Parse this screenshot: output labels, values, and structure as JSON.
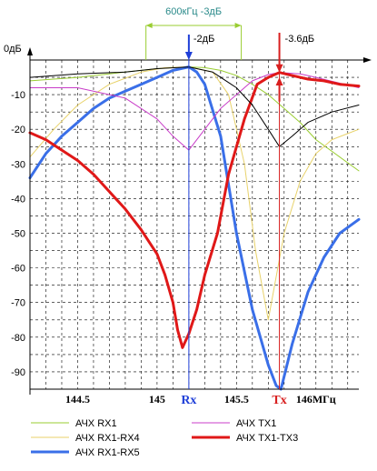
{
  "chart_data": {
    "type": "line",
    "title": "",
    "xlabel": "",
    "ylabel": "",
    "y_unit_label": "0дБ",
    "xlim": [
      144.2,
      146.27
    ],
    "ylim": [
      -95,
      0
    ],
    "grid": true,
    "grid_style": "dashed",
    "legend_position": "bottom",
    "y_ticks": [
      {
        "value": 0,
        "label": "0дБ"
      },
      {
        "value": -10,
        "label": "-10"
      },
      {
        "value": -20,
        "label": "-20"
      },
      {
        "value": -30,
        "label": "-30"
      },
      {
        "value": -40,
        "label": "-40"
      },
      {
        "value": -50,
        "label": "-50"
      },
      {
        "value": -60,
        "label": "-60"
      },
      {
        "value": -70,
        "label": "-70"
      },
      {
        "value": -80,
        "label": "-80"
      },
      {
        "value": -90,
        "label": "-90"
      }
    ],
    "x_ticks": [
      {
        "value": 144.5,
        "label": "144.5"
      },
      {
        "value": 145.0,
        "label": "145"
      },
      {
        "value": 145.5,
        "label": "145.5"
      },
      {
        "value": 146.0,
        "label": "146МГц"
      }
    ],
    "markers": [
      {
        "x": 145.2,
        "label": "Rx",
        "color": "#1f3fd8"
      },
      {
        "x": 145.77,
        "label": "Tx",
        "color": "#d81f1f"
      }
    ],
    "annotations": [
      {
        "text": "600кГц -3дБ",
        "from": 144.93,
        "to": 145.53,
        "y": 3,
        "color": "#2a8a8a",
        "line_color": "#9acd32"
      },
      {
        "text": "-2дБ",
        "x": 145.2,
        "y": 0,
        "color": "#000000"
      },
      {
        "text": "-3.6дБ",
        "x": 145.77,
        "y": -3.6,
        "color": "#000000"
      }
    ],
    "series": [
      {
        "name": "АЧХ RX1",
        "color": "#9acd32",
        "width": 1,
        "x": [
          144.2,
          144.5,
          144.8,
          145.0,
          145.1,
          145.2,
          145.3,
          145.4,
          145.5,
          145.6,
          145.7,
          145.8,
          145.9,
          146.0,
          146.27
        ],
        "y": [
          -6,
          -5,
          -3.5,
          -2.5,
          -2.2,
          -2.0,
          -2.2,
          -3.0,
          -4.5,
          -7,
          -10,
          -14,
          -18,
          -23,
          -32
        ]
      },
      {
        "name": "АЧХ RX1-RX4",
        "color": "#e8d26a",
        "width": 1,
        "x": [
          144.2,
          144.35,
          144.5,
          144.7,
          144.9,
          145.05,
          145.2,
          145.35,
          145.45,
          145.55,
          145.62,
          145.7,
          145.8,
          145.9,
          146.0,
          146.1,
          146.27
        ],
        "y": [
          -28,
          -20,
          -13,
          -7,
          -3.5,
          -2.2,
          -2.0,
          -3.5,
          -10,
          -30,
          -55,
          -75,
          -50,
          -35,
          -27,
          -23,
          -20
        ]
      },
      {
        "name": "АЧХ RX1-RX5",
        "color": "#3a6fe8",
        "width": 3,
        "x": [
          144.2,
          144.3,
          144.4,
          144.5,
          144.6,
          144.7,
          144.8,
          144.9,
          145.0,
          145.1,
          145.2,
          145.25,
          145.3,
          145.4,
          145.5,
          145.6,
          145.7,
          145.75,
          145.78,
          145.85,
          145.95,
          146.05,
          146.15,
          146.27
        ],
        "y": [
          -34,
          -27,
          -22,
          -18,
          -14,
          -11,
          -9,
          -7,
          -5,
          -3,
          -2.0,
          -3.5,
          -7,
          -22,
          -50,
          -72,
          -88,
          -94,
          -95,
          -82,
          -67,
          -57,
          -50,
          -46
        ]
      },
      {
        "name": "АЧХ TX1",
        "color": "#c83cc8",
        "width": 1,
        "x": [
          144.2,
          144.5,
          144.8,
          145.0,
          145.1,
          145.2,
          145.3,
          145.4,
          145.5,
          145.6,
          145.7,
          145.77,
          145.9,
          146.0,
          146.27
        ],
        "y": [
          -8,
          -8,
          -11,
          -17,
          -22,
          -26,
          -20,
          -14,
          -10,
          -6,
          -4.2,
          -3.6,
          -4,
          -5,
          -8
        ]
      },
      {
        "name": "АЧХ TX1-TX3",
        "color": "#e01818",
        "width": 3,
        "x": [
          144.2,
          144.3,
          144.4,
          144.5,
          144.6,
          144.7,
          144.8,
          144.9,
          145.0,
          145.05,
          145.1,
          145.13,
          145.16,
          145.2,
          145.25,
          145.3,
          145.38,
          145.45,
          145.55,
          145.63,
          145.7,
          145.77,
          145.85,
          145.95,
          146.05,
          146.15,
          146.27
        ],
        "y": [
          -21,
          -23,
          -26,
          -29,
          -33,
          -38,
          -43,
          -49,
          -56,
          -62,
          -70,
          -78,
          -83,
          -79,
          -72,
          -62,
          -50,
          -33,
          -17,
          -7,
          -5,
          -3.6,
          -4.5,
          -5.5,
          -6,
          -7,
          -7.5
        ]
      },
      {
        "name": "",
        "color": "#000000",
        "width": 1,
        "x": [
          144.2,
          144.5,
          144.8,
          145.0,
          145.2,
          145.35,
          145.5,
          145.6,
          145.7,
          145.77,
          145.85,
          145.95,
          146.1,
          146.27
        ],
        "y": [
          -5,
          -4,
          -3.5,
          -2.5,
          -2.0,
          -3.5,
          -8,
          -13,
          -20,
          -25,
          -22,
          -18,
          -15,
          -13
        ]
      }
    ],
    "legend": [
      {
        "name": "АЧХ RX1",
        "color": "#9acd32",
        "width": 1
      },
      {
        "name": "АЧХ RX1-RX4",
        "color": "#e8d26a",
        "width": 1
      },
      {
        "name": "АЧХ RX1-RX5",
        "color": "#3a6fe8",
        "width": 3
      },
      {
        "name": "АЧХ TX1",
        "color": "#c83cc8",
        "width": 1
      },
      {
        "name": "АЧХ TX1-TX3",
        "color": "#e01818",
        "width": 3
      }
    ]
  }
}
